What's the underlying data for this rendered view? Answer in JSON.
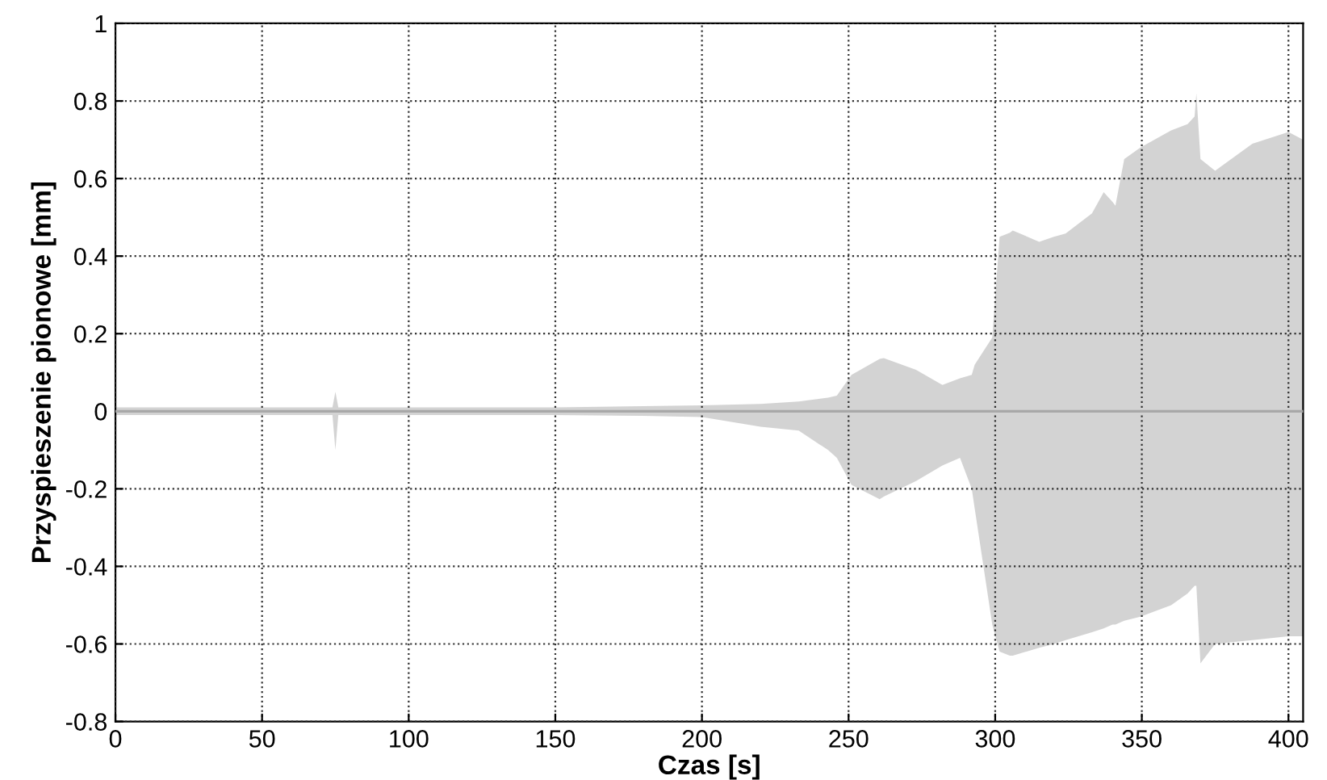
{
  "chart_data": {
    "type": "line",
    "xlabel": "Czas [s]",
    "ylabel": "Przyspieszenie pionowe [mm]",
    "xlim": [
      0,
      405
    ],
    "ylim": [
      -0.8,
      1
    ],
    "xticks": [
      0,
      50,
      100,
      150,
      200,
      250,
      300,
      350,
      400
    ],
    "yticks": [
      -0.8,
      -0.6,
      -0.4,
      -0.2,
      0,
      0.2,
      0.4,
      0.6,
      0.8,
      1
    ],
    "grid": true,
    "marker": "none",
    "series": [
      {
        "color": "#a8a8a8",
        "x": [
          0,
          50,
          74,
          75,
          76,
          100,
          150,
          180,
          200,
          220,
          233,
          243,
          246,
          251,
          260.6,
          262,
          273,
          282,
          288,
          292,
          293,
          299,
          301.5,
          305,
          306,
          315,
          320,
          324,
          333,
          337,
          340,
          341,
          344,
          349.5,
          360,
          365.6,
          368,
          368.6,
          370,
          375,
          387.7,
          400,
          405
        ],
        "values": [
          0,
          0,
          0,
          0,
          0,
          0,
          0,
          0,
          0,
          0,
          0,
          0,
          0,
          0,
          0,
          0,
          0,
          0,
          0,
          0,
          0,
          0,
          0,
          0,
          0,
          0,
          0,
          0,
          0,
          0,
          0,
          0,
          0,
          0,
          0,
          0,
          0,
          0,
          0,
          0,
          0,
          0,
          0
        ],
        "upper": [
          0.01,
          0.01,
          0.01,
          0.05,
          0.01,
          0.01,
          0.01,
          0.013,
          0.015,
          0.019,
          0.025,
          0.035,
          0.04,
          0.094,
          0.135,
          0.137,
          0.107,
          0.068,
          0.085,
          0.094,
          0.12,
          0.19,
          0.45,
          0.46,
          0.466,
          0.437,
          0.45,
          0.458,
          0.51,
          0.565,
          0.54,
          0.53,
          0.65,
          0.68,
          0.724,
          0.74,
          0.76,
          0.82,
          0.65,
          0.62,
          0.69,
          0.72,
          0.7
        ],
        "lower": [
          -0.01,
          -0.01,
          -0.01,
          -0.1,
          -0.01,
          -0.01,
          -0.01,
          -0.012,
          -0.015,
          -0.04,
          -0.05,
          -0.1,
          -0.12,
          -0.19,
          -0.227,
          -0.22,
          -0.18,
          -0.14,
          -0.12,
          -0.2,
          -0.25,
          -0.55,
          -0.62,
          -0.63,
          -0.63,
          -0.61,
          -0.6,
          -0.59,
          -0.57,
          -0.56,
          -0.55,
          -0.55,
          -0.54,
          -0.53,
          -0.5,
          -0.47,
          -0.45,
          -0.45,
          -0.65,
          -0.6,
          -0.59,
          -0.58,
          -0.58
        ]
      }
    ]
  }
}
